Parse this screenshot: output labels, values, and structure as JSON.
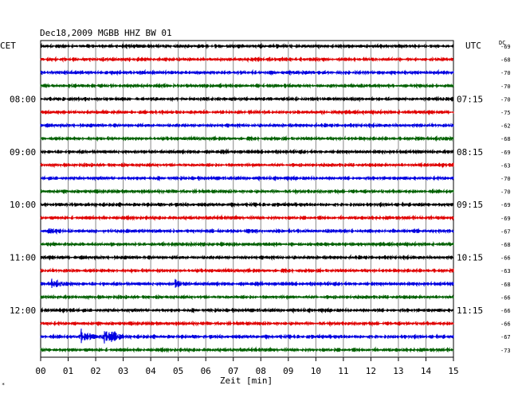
{
  "chart_data": {
    "type": "line",
    "title": "Dec18,2009   MGBB HHZ BW 01",
    "left_timezone": "CET",
    "right_timezone": "UTC",
    "dc_label": "DC",
    "xlabel": "Zeit [min]",
    "xlim": [
      0,
      15
    ],
    "x_ticks": [
      "00",
      "01",
      "02",
      "03",
      "04",
      "05",
      "06",
      "07",
      "08",
      "09",
      "10",
      "11",
      "12",
      "13",
      "14",
      "15"
    ],
    "trace_colors": [
      "#000000",
      "#e00000",
      "#0000e0",
      "#006000"
    ],
    "traces": [
      {
        "dc": "-69"
      },
      {
        "dc": "-68"
      },
      {
        "dc": "-70"
      },
      {
        "dc": "-70"
      },
      {
        "dc": "-70",
        "left_time": "08:00",
        "right_time": "07:15"
      },
      {
        "dc": "-75"
      },
      {
        "dc": "-62"
      },
      {
        "dc": "-68"
      },
      {
        "dc": "-69",
        "left_time": "09:00",
        "right_time": "08:15"
      },
      {
        "dc": "-63"
      },
      {
        "dc": "-70"
      },
      {
        "dc": "-70"
      },
      {
        "dc": "-69",
        "left_time": "10:00",
        "right_time": "09:15"
      },
      {
        "dc": "-69"
      },
      {
        "dc": "-67"
      },
      {
        "dc": "-68"
      },
      {
        "dc": "-66",
        "left_time": "11:00",
        "right_time": "10:15"
      },
      {
        "dc": "-63"
      },
      {
        "dc": "-68"
      },
      {
        "dc": "-66"
      },
      {
        "dc": "-66",
        "left_time": "12:00",
        "right_time": "11:15"
      },
      {
        "dc": "-66"
      },
      {
        "dc": "-67"
      },
      {
        "dc": "-73"
      }
    ],
    "events": [
      {
        "trace": 14,
        "x_min": 0.25,
        "amp": 0.5
      },
      {
        "trace": 18,
        "x_min": 0.4,
        "amp": 0.4
      },
      {
        "trace": 18,
        "x_min": 4.9,
        "amp": 0.3
      },
      {
        "trace": 22,
        "x_min": 1.5,
        "amp": 1.0
      },
      {
        "trace": 22,
        "x_min": 2.25,
        "amp": 1.0
      },
      {
        "trace": 22,
        "x_min": 2.6,
        "amp": 0.6
      }
    ]
  }
}
